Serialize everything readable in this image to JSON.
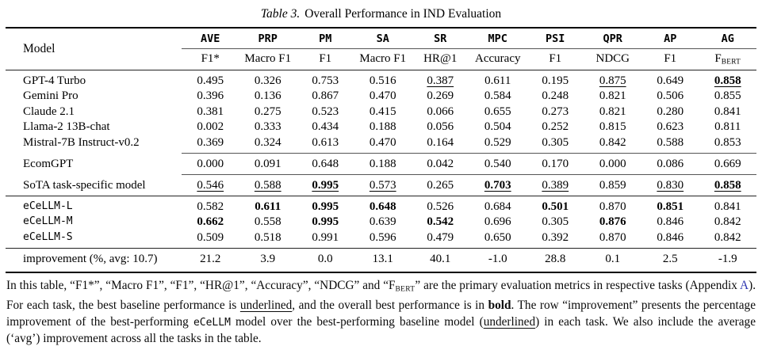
{
  "title": {
    "tag": "Table 3.",
    "text": "Overall Performance in IND Evaluation"
  },
  "colors": {
    "link_blue": "#2d35b0"
  },
  "table": {
    "model_header": "Model",
    "columns": [
      {
        "task": "AVE",
        "metric": "F1*"
      },
      {
        "task": "PRP",
        "metric": "Macro F1"
      },
      {
        "task": "PM",
        "metric": "F1"
      },
      {
        "task": "SA",
        "metric": "Macro F1"
      },
      {
        "task": "SR",
        "metric": "HR@1"
      },
      {
        "task": "MPC",
        "metric": "Accuracy"
      },
      {
        "task": "PSI",
        "metric": "F1"
      },
      {
        "task": "QPR",
        "metric": "NDCG"
      },
      {
        "task": "AP",
        "metric": "F1"
      },
      {
        "task": "AG",
        "metric": "F",
        "metric_sub": "BERT"
      }
    ],
    "groups": [
      {
        "rule": "cmid",
        "rows": [
          {
            "model": "GPT-4 Turbo",
            "mono": false,
            "values": [
              "0.495",
              "0.326",
              "0.753",
              "0.516",
              "0.387",
              "0.611",
              "0.195",
              "0.875",
              "0.649",
              "0.858"
            ],
            "styles": [
              "",
              "",
              "",
              "",
              "u",
              "",
              "",
              "u",
              "",
              "bu"
            ]
          },
          {
            "model": "Gemini Pro",
            "mono": false,
            "values": [
              "0.396",
              "0.136",
              "0.867",
              "0.470",
              "0.269",
              "0.584",
              "0.248",
              "0.821",
              "0.506",
              "0.855"
            ],
            "styles": [
              "",
              "",
              "",
              "",
              "",
              "",
              "",
              "",
              "",
              ""
            ]
          },
          {
            "model": "Claude 2.1",
            "mono": false,
            "values": [
              "0.381",
              "0.275",
              "0.523",
              "0.415",
              "0.066",
              "0.655",
              "0.273",
              "0.821",
              "0.280",
              "0.841"
            ],
            "styles": [
              "",
              "",
              "",
              "",
              "",
              "",
              "",
              "",
              "",
              ""
            ]
          },
          {
            "model": "Llama-2 13B-chat",
            "mono": false,
            "values": [
              "0.002",
              "0.333",
              "0.434",
              "0.188",
              "0.056",
              "0.504",
              "0.252",
              "0.815",
              "0.623",
              "0.811"
            ],
            "styles": [
              "",
              "",
              "",
              "",
              "",
              "",
              "",
              "",
              "",
              ""
            ]
          },
          {
            "model": "Mistral-7B Instruct-v0.2",
            "mono": false,
            "values": [
              "0.369",
              "0.324",
              "0.613",
              "0.470",
              "0.164",
              "0.529",
              "0.305",
              "0.842",
              "0.588",
              "0.853"
            ],
            "styles": [
              "",
              "",
              "",
              "",
              "",
              "",
              "",
              "",
              "",
              ""
            ]
          }
        ]
      },
      {
        "rule": "cmid",
        "rows": [
          {
            "model": "EcomGPT",
            "mono": false,
            "values": [
              "0.000",
              "0.091",
              "0.648",
              "0.188",
              "0.042",
              "0.540",
              "0.170",
              "0.000",
              "0.086",
              "0.669"
            ],
            "styles": [
              "",
              "",
              "",
              "",
              "",
              "",
              "",
              "",
              "",
              ""
            ]
          }
        ]
      },
      {
        "rule": "full",
        "rows": [
          {
            "model": "SoTA task-specific model",
            "mono": false,
            "values": [
              "0.546",
              "0.588",
              "0.995",
              "0.573",
              "0.265",
              "0.703",
              "0.389",
              "0.859",
              "0.830",
              "0.858"
            ],
            "styles": [
              "u",
              "u",
              "bu",
              "u",
              "",
              "bu",
              "u",
              "",
              "u",
              "bu"
            ]
          }
        ]
      },
      {
        "rule": "full",
        "rows": [
          {
            "model": "eCeLLM-L",
            "mono": true,
            "values": [
              "0.582",
              "0.611",
              "0.995",
              "0.648",
              "0.526",
              "0.684",
              "0.501",
              "0.870",
              "0.851",
              "0.841"
            ],
            "styles": [
              "",
              "b",
              "b",
              "b",
              "",
              "",
              "b",
              "",
              "b",
              ""
            ]
          },
          {
            "model": "eCeLLM-M",
            "mono": true,
            "values": [
              "0.662",
              "0.558",
              "0.995",
              "0.639",
              "0.542",
              "0.696",
              "0.305",
              "0.876",
              "0.846",
              "0.842"
            ],
            "styles": [
              "b",
              "",
              "b",
              "",
              "b",
              "",
              "",
              "b",
              "",
              ""
            ]
          },
          {
            "model": "eCeLLM-S",
            "mono": true,
            "values": [
              "0.509",
              "0.518",
              "0.991",
              "0.596",
              "0.479",
              "0.650",
              "0.392",
              "0.870",
              "0.846",
              "0.842"
            ],
            "styles": [
              "",
              "",
              "",
              "",
              "",
              "",
              "",
              "",
              "",
              ""
            ]
          }
        ]
      },
      {
        "rule": "none",
        "rows": [
          {
            "model": "improvement (%, avg: 10.7)",
            "mono": false,
            "values": [
              "21.2",
              "3.9",
              "0.0",
              "13.1",
              "40.1",
              "-1.0",
              "28.8",
              "0.1",
              "2.5",
              "-1.9"
            ],
            "styles": [
              "",
              "",
              "",
              "",
              "",
              "",
              "",
              "",
              "",
              ""
            ]
          }
        ]
      }
    ]
  },
  "caption": {
    "segments": [
      {
        "text": "In this table, “F1*”, “Macro F1”, “F1”, “HR@1”, “Accuracy”, “NDCG” and “F"
      },
      {
        "text": "BERT",
        "style": "sub"
      },
      {
        "text": "” are the primary evaluation metrics in respective tasks (Appendix "
      },
      {
        "text": "A",
        "style": "link"
      },
      {
        "text": "). For each task, the best baseline performance is "
      },
      {
        "text": "underlined",
        "style": "underline"
      },
      {
        "text": ", and the overall best performance is in "
      },
      {
        "text": "bold",
        "style": "bold"
      },
      {
        "text": ". The row “improvement” presents the percentage improvement of the best-performing "
      },
      {
        "text": "eCeLLM",
        "style": "mono"
      },
      {
        "text": " model over the best-performing baseline model ("
      },
      {
        "text": "underlined",
        "style": "underline"
      },
      {
        "text": ") in each task. We also include the average (‘avg’) improvement across all the tasks in the table."
      }
    ]
  }
}
